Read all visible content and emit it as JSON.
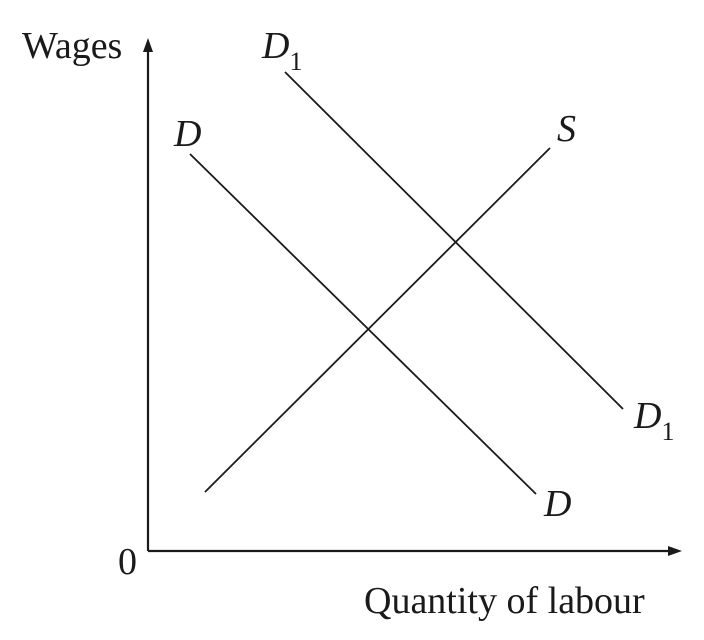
{
  "diagram": {
    "y_axis_label": "Wages",
    "x_axis_label": "Quantity of labour",
    "origin_label": "0",
    "curves": {
      "demand": {
        "label": "D"
      },
      "demand_shifted": {
        "label": "D",
        "subscript": "1"
      },
      "supply": {
        "label": "S"
      }
    }
  }
}
